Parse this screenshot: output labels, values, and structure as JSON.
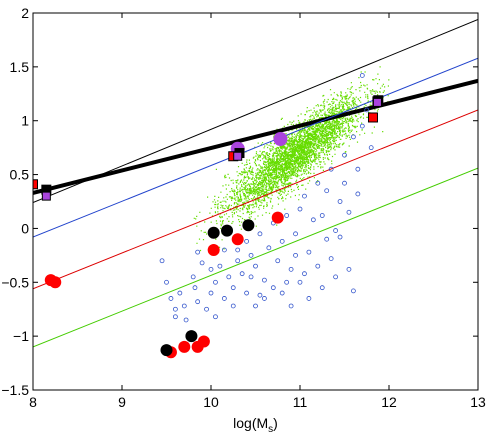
{
  "chart_data": {
    "type": "scatter",
    "xlabel": "log(M",
    "xlabel_sub": "s",
    "xlabel_close": ")",
    "ylabel": "",
    "xlim": [
      8,
      13
    ],
    "ylim": [
      -1.5,
      2
    ],
    "x_ticks": [
      8,
      9,
      10,
      11,
      12,
      13
    ],
    "y_ticks": [
      -1.5,
      -1,
      -0.5,
      0,
      0.5,
      1,
      1.5,
      2
    ],
    "x_tick_labels": [
      "8",
      "9",
      "10",
      "11",
      "12",
      "13"
    ],
    "y_tick_labels": [
      "−1.5",
      "−1",
      "−0.5",
      "0",
      "0.5",
      "1",
      "1.5",
      "2"
    ],
    "grid": false,
    "colors": {
      "cloud": "#66dd00",
      "open_circles": "#3355cc",
      "red": "#ff0000",
      "black": "#000000",
      "purple": "#aa44dd",
      "fit_black": "#000000",
      "line_blue": "#2244cc",
      "line_red": "#dd0000",
      "line_green": "#44cc00"
    },
    "lines": [
      {
        "color_key": "fit_black",
        "width": "thick",
        "x": [
          8,
          13
        ],
        "y": [
          0.33,
          1.37
        ]
      },
      {
        "color_key": "fit_black",
        "width": "thin",
        "x": [
          8,
          13
        ],
        "y": [
          0.24,
          1.94
        ]
      },
      {
        "color_key": "line_blue",
        "width": "thin",
        "x": [
          8,
          13
        ],
        "y": [
          -0.08,
          1.58
        ]
      },
      {
        "color_key": "line_red",
        "width": "thin",
        "x": [
          8,
          13
        ],
        "y": [
          -0.56,
          1.1
        ]
      },
      {
        "color_key": "line_green",
        "width": "thin",
        "x": [
          8,
          13
        ],
        "y": [
          -1.1,
          0.56
        ]
      }
    ],
    "green_cloud": {
      "description_free": true,
      "x_range": [
        9.9,
        12.0
      ],
      "relation": {
        "slope": 0.62,
        "intercept": -6.1
      },
      "spread": 0.13,
      "count": 9000
    },
    "open_circles": [
      [
        9.45,
        -0.3
      ],
      [
        9.5,
        -0.5
      ],
      [
        9.55,
        -0.65
      ],
      [
        9.6,
        -0.75
      ],
      [
        9.6,
        -0.82
      ],
      [
        9.65,
        -0.6
      ],
      [
        9.7,
        -0.72
      ],
      [
        9.72,
        -0.85
      ],
      [
        9.8,
        -0.45
      ],
      [
        9.82,
        -0.55
      ],
      [
        9.85,
        -0.68
      ],
      [
        9.9,
        -0.32
      ],
      [
        9.95,
        -0.75
      ],
      [
        10.0,
        -0.6
      ],
      [
        10.05,
        -0.5
      ],
      [
        10.05,
        -0.82
      ],
      [
        10.1,
        -0.35
      ],
      [
        10.15,
        -0.65
      ],
      [
        10.2,
        -0.45
      ],
      [
        10.25,
        -0.55
      ],
      [
        10.25,
        -0.72
      ],
      [
        10.3,
        -0.3
      ],
      [
        10.3,
        -0.2
      ],
      [
        10.35,
        -0.42
      ],
      [
        10.4,
        -0.6
      ],
      [
        10.4,
        -0.12
      ],
      [
        10.45,
        -0.25
      ],
      [
        10.5,
        -0.72
      ],
      [
        10.5,
        -0.35
      ],
      [
        10.55,
        -0.05
      ],
      [
        10.6,
        -0.48
      ],
      [
        10.6,
        -0.65
      ],
      [
        10.65,
        -0.18
      ],
      [
        10.7,
        0.05
      ],
      [
        10.7,
        -0.55
      ],
      [
        10.75,
        -0.3
      ],
      [
        10.8,
        -0.12
      ],
      [
        10.8,
        -0.6
      ],
      [
        10.85,
        0.12
      ],
      [
        10.9,
        -0.38
      ],
      [
        10.9,
        -0.72
      ],
      [
        10.95,
        -0.05
      ],
      [
        11.0,
        0.18
      ],
      [
        11.0,
        -0.5
      ],
      [
        11.05,
        0.3
      ],
      [
        11.1,
        -0.22
      ],
      [
        11.1,
        -0.65
      ],
      [
        11.15,
        0.08
      ],
      [
        11.2,
        0.42
      ],
      [
        11.2,
        -0.35
      ],
      [
        11.25,
        -0.55
      ],
      [
        11.3,
        0.35
      ],
      [
        11.3,
        -0.1
      ],
      [
        11.35,
        0.55
      ],
      [
        11.4,
        -0.02
      ],
      [
        11.4,
        -0.45
      ],
      [
        11.45,
        0.25
      ],
      [
        11.5,
        0.68
      ],
      [
        11.5,
        0.42
      ],
      [
        11.55,
        0.15
      ],
      [
        11.6,
        0.85
      ],
      [
        11.65,
        0.55
      ],
      [
        11.65,
        0.32
      ],
      [
        11.7,
        1.42
      ],
      [
        11.7,
        0.95
      ],
      [
        11.75,
        1.1
      ],
      [
        11.8,
        0.75
      ],
      [
        11.55,
        -0.38
      ],
      [
        11.6,
        -0.58
      ],
      [
        11.45,
        -0.08
      ],
      [
        10.15,
        -0.2
      ],
      [
        10.0,
        -0.38
      ],
      [
        9.85,
        -0.22
      ],
      [
        10.45,
        -0.45
      ],
      [
        10.95,
        -0.25
      ],
      [
        11.25,
        0.12
      ],
      [
        11.35,
        -0.28
      ],
      [
        11.05,
        -0.42
      ],
      [
        10.85,
        -0.5
      ],
      [
        10.55,
        -0.62
      ]
    ],
    "red_circles": [
      [
        8.2,
        -0.48
      ],
      [
        8.25,
        -0.5
      ],
      [
        9.55,
        -1.15
      ],
      [
        9.7,
        -1.1
      ],
      [
        9.85,
        -1.1
      ],
      [
        9.92,
        -1.05
      ],
      [
        10.03,
        -0.2
      ],
      [
        10.3,
        -0.1
      ],
      [
        10.75,
        0.1
      ]
    ],
    "black_circles": [
      [
        9.5,
        -1.13
      ],
      [
        9.78,
        -1.0
      ],
      [
        10.03,
        -0.04
      ],
      [
        10.18,
        -0.02
      ],
      [
        10.42,
        0.03
      ]
    ],
    "purple_circles": [
      [
        10.3,
        0.74
      ],
      [
        10.78,
        0.83
      ]
    ],
    "red_squares": [
      [
        8.0,
        0.41
      ],
      [
        10.25,
        0.67
      ],
      [
        11.82,
        1.03
      ],
      [
        11.87,
        1.18
      ]
    ],
    "black_squares": [
      [
        8.15,
        0.36
      ],
      [
        10.32,
        0.7
      ],
      [
        11.88,
        1.19
      ]
    ],
    "purple_squares": [
      [
        8.15,
        0.3
      ],
      [
        10.3,
        0.67
      ],
      [
        11.87,
        1.17
      ]
    ]
  }
}
